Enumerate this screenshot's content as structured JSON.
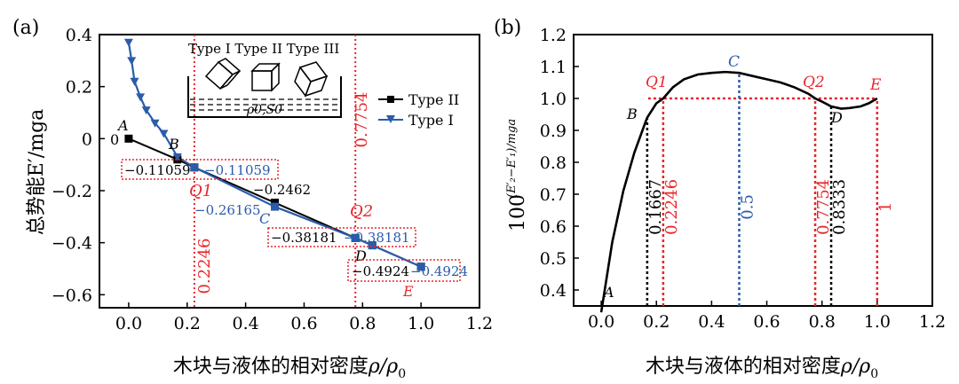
{
  "chart_data": [
    {
      "panel": "(a)",
      "type": "line",
      "ylabel": "总势能E′/mga",
      "xlabel": "木块与液体的相对密度ρ/ρ0",
      "xlabel_main": "木块与液体的相对密度",
      "xlabel_var": "ρ/ρ",
      "xlabel_sub": "0",
      "xlim": [
        -0.1,
        1.2
      ],
      "ylim": [
        -0.65,
        0.4
      ],
      "xticks": [
        "0.0",
        "0.2",
        "0.4",
        "0.6",
        "0.8",
        "1.0",
        "1.2"
      ],
      "yticks": [
        "0.4",
        "0.2",
        "0",
        "-0.2",
        "-0.4",
        "-0.6"
      ],
      "series": [
        {
          "name": "Type II",
          "color": "#000000",
          "marker": "square",
          "x": [
            0,
            0.1667,
            0.2246,
            0.5,
            0.7754,
            0.8333,
            1.0
          ],
          "y": [
            0,
            -0.08,
            -0.11059,
            -0.2462,
            -0.38181,
            -0.41,
            -0.4924
          ]
        },
        {
          "name": "Type I",
          "color": "#2a5caa",
          "marker": "triangle-down",
          "x": [
            0,
            0.01,
            0.02,
            0.04,
            0.06,
            0.09,
            0.12,
            0.1667,
            0.2246,
            0.5,
            0.7754,
            0.8333,
            1.0
          ],
          "y": [
            0.37,
            0.3,
            0.22,
            0.16,
            0.11,
            0.06,
            0.02,
            -0.07,
            -0.11059,
            -0.26165,
            -0.38181,
            -0.41,
            -0.4924
          ]
        }
      ],
      "legend": [
        "Type II",
        "Type I"
      ],
      "inset": {
        "title": "Type I Type II Type III",
        "liquid_label": "ρ0,S0"
      },
      "point_labels": {
        "A": "A",
        "A_value": "0",
        "B": "B",
        "C": "C",
        "D": "D",
        "E": "E",
        "Q1": "Q1",
        "Q2": "Q2"
      },
      "vlines": [
        0.2246,
        0.7754
      ],
      "vline_labels": [
        "0.2246",
        "0.7754"
      ],
      "annotations": {
        "b_black": "−0.11059",
        "b_blue": "−0.11059",
        "c_black": "−0.2462",
        "c_blue": "−0.26165",
        "q2_black": "−0.38181",
        "q2_blue": "−0.38181",
        "e_black": "−0.4924",
        "e_blue": "−0.4924"
      }
    },
    {
      "panel": "(b)",
      "type": "line",
      "ylabel": "100^{(E2′−E1′)/mga}",
      "ylabel_base": "100",
      "ylabel_exp": "(E′₂−E′₁)/mga",
      "xlabel": "木块与液体的相对密度ρ/ρ0",
      "xlim": [
        -0.1,
        1.2
      ],
      "ylim": [
        0.35,
        1.2
      ],
      "xticks": [
        "0.0",
        "0.2",
        "0.4",
        "0.6",
        "0.8",
        "1.0",
        "1.2"
      ],
      "yticks": [
        "1.2",
        "1.1",
        "1.0",
        "0.9",
        "0.8",
        "0.7",
        "0.6",
        "0.5",
        "0.4"
      ],
      "curve": {
        "x": [
          0.0,
          0.04,
          0.08,
          0.12,
          0.16,
          0.1667,
          0.2,
          0.2246,
          0.26,
          0.3,
          0.35,
          0.4,
          0.45,
          0.5,
          0.55,
          0.6,
          0.65,
          0.7,
          0.75,
          0.7754,
          0.8,
          0.8333,
          0.87,
          0.9,
          0.94,
          0.97,
          1.0
        ],
        "y": [
          0.33,
          0.55,
          0.71,
          0.83,
          0.925,
          0.94,
          0.985,
          1.0,
          1.035,
          1.06,
          1.075,
          1.08,
          1.083,
          1.08,
          1.07,
          1.06,
          1.05,
          1.035,
          1.015,
          1.0,
          0.99,
          0.975,
          0.968,
          0.97,
          0.975,
          0.985,
          1.0
        ]
      },
      "hline": 1.0,
      "vlines": [
        {
          "x": 0.1667,
          "label": "0.1667",
          "color": "#000000"
        },
        {
          "x": 0.2246,
          "label": "0.2246",
          "color": "#e8262b"
        },
        {
          "x": 0.5,
          "label": "0.5",
          "color": "#2a5caa"
        },
        {
          "x": 0.7754,
          "label": "0.7754",
          "color": "#e8262b"
        },
        {
          "x": 0.8333,
          "label": "0.8333",
          "color": "#000000"
        },
        {
          "x": 1.0,
          "label": "1",
          "color": "#e8262b"
        }
      ],
      "point_labels": {
        "A": "A",
        "B": "B",
        "C": "C",
        "D": "D",
        "E": "E",
        "Q1": "Q1",
        "Q2": "Q2"
      }
    }
  ],
  "colors": {
    "red": "#e8262b",
    "blue": "#2a5caa",
    "black": "#000000"
  }
}
